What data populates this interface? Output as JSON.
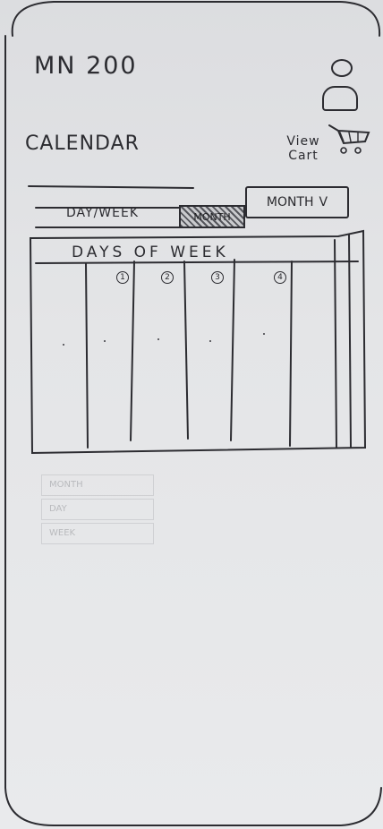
{
  "header": {
    "app_title": "MN 200",
    "calendar_heading": "CALENDAR",
    "view_cart_label": "View Cart"
  },
  "toolbar": {
    "toggle_label": "DAY/WEEK",
    "toggle_active": "MONTH",
    "month_select_label": "MONTH",
    "month_select_chevron": "V"
  },
  "calendar": {
    "header": "DAYS OF WEEK",
    "date_numbers": [
      "1",
      "2",
      "3",
      "4"
    ]
  },
  "dropdown_menu": {
    "items": [
      "MONTH",
      "DAY",
      "WEEK"
    ]
  },
  "icons": {
    "profile": "user-icon",
    "cart": "shopping-cart-icon"
  }
}
